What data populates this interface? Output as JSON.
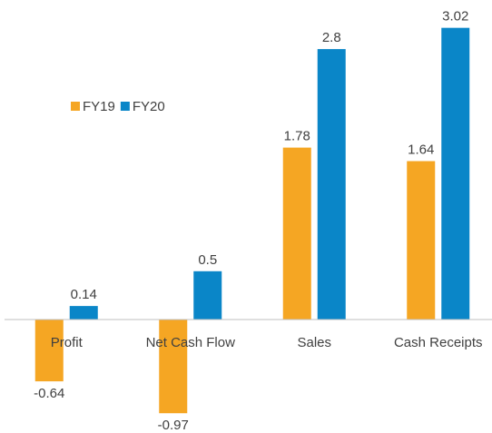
{
  "chart_data": {
    "type": "bar",
    "categories": [
      "Profit",
      "Net Cash Flow",
      "Sales",
      "Cash Receipts"
    ],
    "series": [
      {
        "name": "FY19",
        "color": "#f5a623",
        "values": [
          -0.64,
          -0.97,
          1.78,
          1.64
        ]
      },
      {
        "name": "FY20",
        "color": "#0a86c8",
        "values": [
          0.14,
          0.5,
          2.8,
          3.02
        ]
      }
    ],
    "legend": "top-left"
  }
}
